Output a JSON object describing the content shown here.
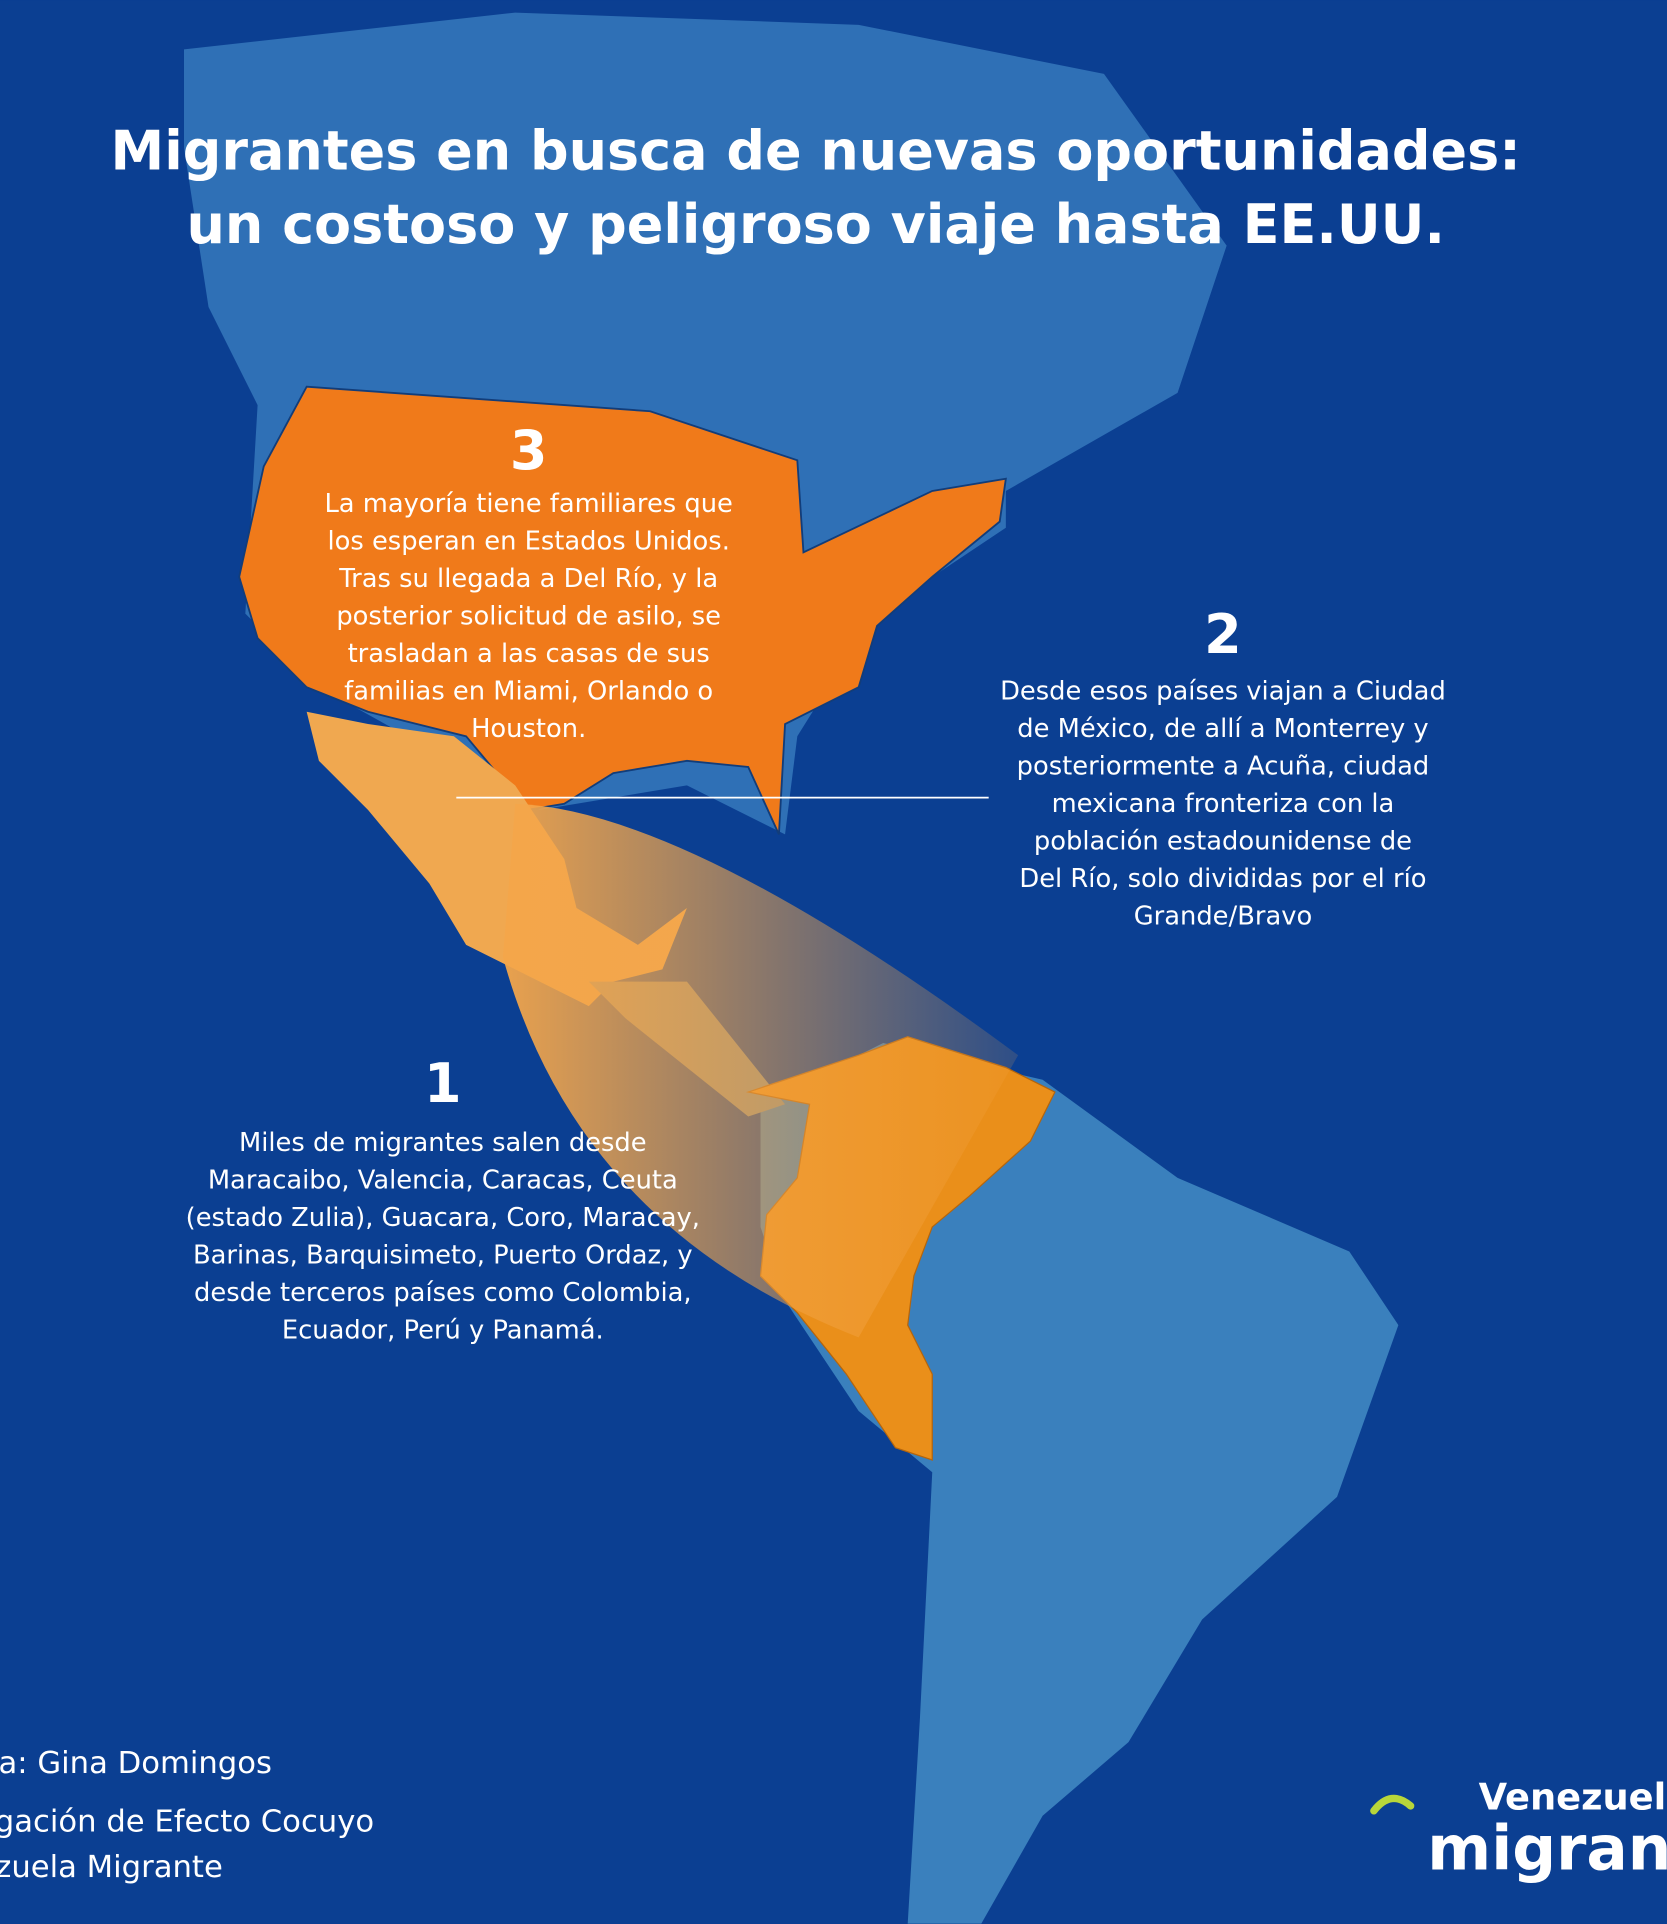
{
  "title": [
    "Migrantes en busca de nuevas oportunidades:",
    "un costoso y peligroso viaje hasta EE.UU."
  ],
  "steps": [
    {
      "number": "3",
      "lines": [
        "La mayoría tiene familiares que",
        "los esperan en Estados Unidos.",
        "Tras su llegada a Del Río, y la",
        "posterior solicitud de asilo, se",
        "trasladan a las casas de sus",
        "familias en Miami, Orlando o",
        "Houston."
      ]
    },
    {
      "number": "2",
      "lines": [
        "Desde esos países viajan a Ciudad",
        "de México, de allí a Monterrey y",
        "posteriormente a Acuña, ciudad",
        "mexicana fronteriza con la",
        "población estadounidense de",
        "Del Río, solo divididas por el río",
        "Grande/Bravo"
      ]
    },
    {
      "number": "1",
      "lines": [
        "Miles de migrantes salen desde",
        "Maracaibo, Valencia, Caracas, Ceuta",
        "(estado Zulia), Guacara, Coro, Maracay,",
        "Barinas, Barquisimeto, Puerto Ordaz, y",
        "desde terceros países como Colombia,",
        "Ecuador, Perú y Panamá."
      ]
    }
  ],
  "credits": [
    "Infografía: Gina Domingos",
    "Fuente: Investigación de Efecto Cocuyo",
    "Venezuela Migrante"
  ],
  "logo": {
    "top": "Venezuela",
    "bottom": "migrante"
  }
}
